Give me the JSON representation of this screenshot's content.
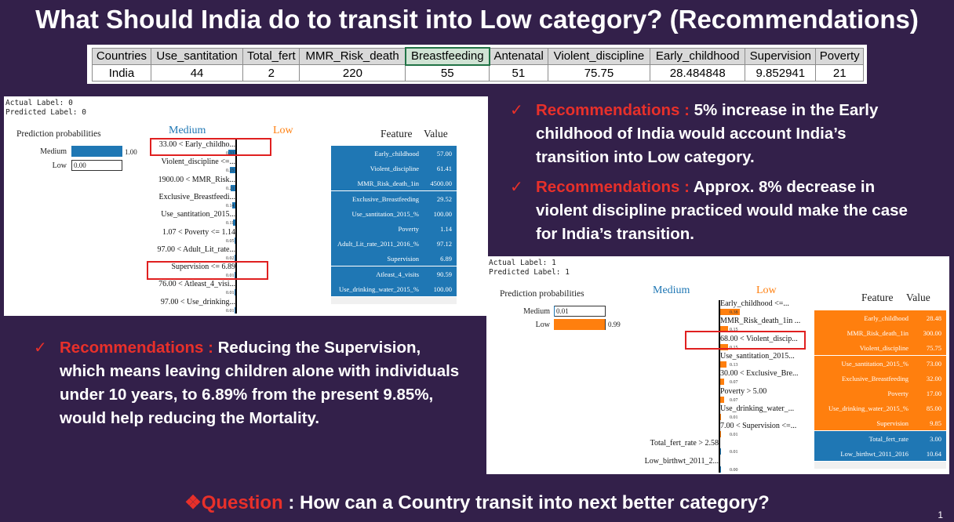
{
  "title": "What Should India do to transit into Low category? (Recommendations)",
  "table": {
    "headers": [
      "Countries",
      "Use_santitation",
      "Total_fert",
      "MMR_Risk_death",
      "Breastfeeding",
      "Antenatal",
      "Violent_discipline",
      "Early_childhood",
      "Supervision",
      "Poverty"
    ],
    "row": [
      "India",
      "44",
      "2",
      "220",
      "55",
      "51",
      "75.75",
      "28.484848",
      "9.852941",
      "21"
    ]
  },
  "panel1": {
    "actual_label": "Actual Label: 0",
    "predicted_label": "Predicted Label: 0",
    "prob_title": "Prediction probabilities",
    "probs": [
      {
        "label": "Medium",
        "value": "1.00",
        "fraction": 1.0
      },
      {
        "label": "Low",
        "value": "0.00",
        "fraction": 0.0
      }
    ],
    "class_left": "Medium",
    "class_right": "Low",
    "features": [
      {
        "label": "33.00 < Early_childho...",
        "value": "0.33"
      },
      {
        "label": "Violent_discipline <=...",
        "value": "0.25"
      },
      {
        "label": "1900.00 < MMR_Risk...",
        "value": "0.21"
      },
      {
        "label": "Exclusive_Breastfeedi...",
        "value": "0.14"
      },
      {
        "label": "Use_santitation_2015...",
        "value": "0.11"
      },
      {
        "label": "1.07 < Poverty <= 1.14",
        "value": "0.05"
      },
      {
        "label": "97.00 < Adult_Lit_rate...",
        "value": "0.02"
      },
      {
        "label": "Supervision <= 6.89",
        "value": "0.01"
      },
      {
        "label": "76.00 < Atleast_4_visi...",
        "value": "0.01"
      },
      {
        "label": "97.00 < Use_drinking...",
        "value": "0.01"
      }
    ],
    "fv_header": {
      "feature": "Feature",
      "value": "Value"
    },
    "fv_rows": [
      {
        "name": "Early_childhood",
        "value": "57.00"
      },
      {
        "name": "Violent_discipline",
        "value": "61.41"
      },
      {
        "name": "MMR_Risk_death_1in",
        "value": "4500.00"
      },
      {
        "name": "Exclusive_Breastfeeding",
        "value": "29.52"
      },
      {
        "name": "Use_santitation_2015_%",
        "value": "100.00"
      },
      {
        "name": "Poverty",
        "value": "1.14"
      },
      {
        "name": "Adult_Lit_rate_2011_2016_%",
        "value": "97.12"
      },
      {
        "name": "Supervision",
        "value": "6.89"
      },
      {
        "name": "Atleast_4_visits",
        "value": "90.59"
      },
      {
        "name": "Use_drinking_water_2015_%",
        "value": "100.00"
      }
    ]
  },
  "panel2": {
    "actual_label": "Actual Label: 1",
    "predicted_label": "Predicted Label: 1",
    "prob_title": "Prediction probabilities",
    "probs": [
      {
        "label": "Medium",
        "value": "0.01",
        "fraction": 0.01
      },
      {
        "label": "Low",
        "value": "0.99",
        "fraction": 0.99
      }
    ],
    "class_left": "Medium",
    "class_right": "Low",
    "features": [
      {
        "label": "Early_childhood <=...",
        "value": "0.38"
      },
      {
        "label": "MMR_Risk_death_1in ...",
        "value": "0.15"
      },
      {
        "label": "68.00 < Violent_discip...",
        "value": "0.15"
      },
      {
        "label": "Use_santitation_2015...",
        "value": "0.13"
      },
      {
        "label": "30.00 < Exclusive_Bre...",
        "value": "0.07"
      },
      {
        "label": "Poverty > 5.00",
        "value": "0.07"
      },
      {
        "label": "Use_drinking_water_...",
        "value": "0.01"
      },
      {
        "label": "7.00 < Supervision <=...",
        "value": "0.01"
      },
      {
        "label": "Total_fert_rate > 2.58",
        "value": "0.01"
      },
      {
        "label": "Low_birthwt_2011_2...",
        "value": "0.00"
      }
    ],
    "fv_header": {
      "feature": "Feature",
      "value": "Value"
    },
    "fv_rows": [
      {
        "name": "Early_childhood",
        "value": "28.48"
      },
      {
        "name": "MMR_Risk_death_1in",
        "value": "300.00"
      },
      {
        "name": "Violent_discipline",
        "value": "75.75"
      },
      {
        "name": "Use_santitation_2015_%",
        "value": "73.00"
      },
      {
        "name": "Exclusive_Breastfeeding",
        "value": "32.00"
      },
      {
        "name": "Poverty",
        "value": "17.00"
      },
      {
        "name": "Use_drinking_water_2015_%",
        "value": "85.00"
      },
      {
        "name": "Supervision",
        "value": "9.85"
      },
      {
        "name": "Total_fert_rate",
        "value": "3.00"
      },
      {
        "name": "Low_birthwt_2011_2016",
        "value": "10.64"
      }
    ]
  },
  "recommendations": {
    "prefix": "Recommendations :",
    "rec1": "5% increase in the Early childhood of India would account India’s transition into Low category.",
    "rec2": "Approx. 8% decrease in violent discipline practiced would make the case for India’s transition.",
    "rec3": "Reducing the Supervision, which means leaving children alone with individuals under 10 years, to 6.89% from the present 9.85%, would help reducing the Mortality."
  },
  "question": {
    "prefix": "Question",
    "text": " : How can a Country transit into next better category?"
  },
  "page_number": "1",
  "colors": {
    "background": "#33204a",
    "medium": "#1f77b4",
    "low": "#ff7f0e",
    "highlight": "#e02020",
    "prefix_red": "#e8302a"
  }
}
